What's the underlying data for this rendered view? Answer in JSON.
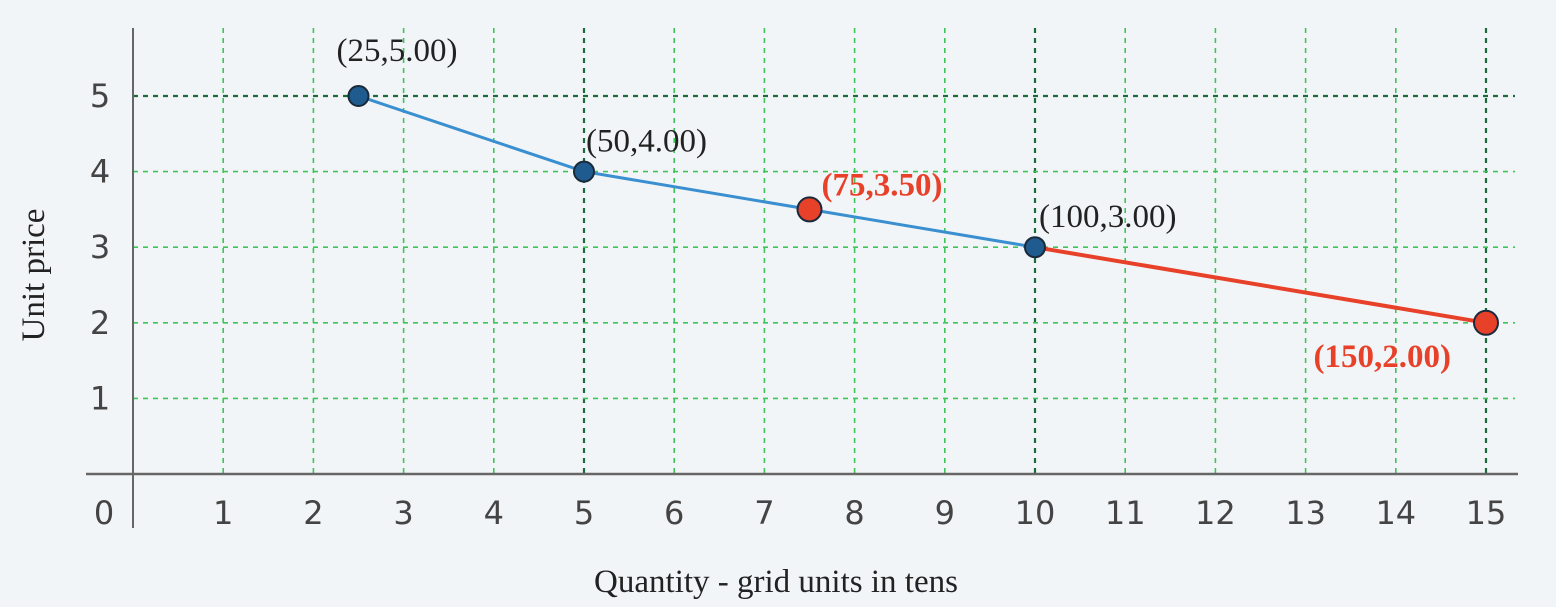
{
  "chart_data": {
    "type": "line",
    "title": "",
    "xlabel": "Quantity - grid units in tens",
    "ylabel": "Unit price",
    "xlim": [
      0,
      15
    ],
    "ylim": [
      0,
      5
    ],
    "x_ticks": [
      "1",
      "2",
      "3",
      "4",
      "5",
      "6",
      "7",
      "8",
      "9",
      "10",
      "11",
      "12",
      "13",
      "14",
      "15"
    ],
    "y_ticks": [
      "1",
      "2",
      "3",
      "4",
      "5"
    ],
    "origin_label": "0",
    "grid": true,
    "colors": {
      "blue": "#3a8fd0",
      "red": "#e8412a",
      "grid": "#3ec55a",
      "axis": "#666666",
      "emphasis_grid": "#1a6a3a",
      "point_blue": "#1f5b8e"
    },
    "series": [
      {
        "color": "blue",
        "points": [
          {
            "x": 2.5,
            "y": 5.0,
            "label": "(25,5.00)"
          },
          {
            "x": 5.0,
            "y": 4.0,
            "label": "(50,4.00)"
          },
          {
            "x": 7.5,
            "y": 3.5,
            "label": "(75,3.50)"
          },
          {
            "x": 10.0,
            "y": 3.0,
            "label": "(100,3.00)"
          }
        ]
      },
      {
        "color": "red",
        "points": [
          {
            "x": 10.0,
            "y": 3.0
          },
          {
            "x": 15.0,
            "y": 2.0,
            "label": "(150,2.00)"
          }
        ]
      }
    ],
    "highlighted_points": [
      "(75,3.50)",
      "(150,2.00)"
    ]
  }
}
